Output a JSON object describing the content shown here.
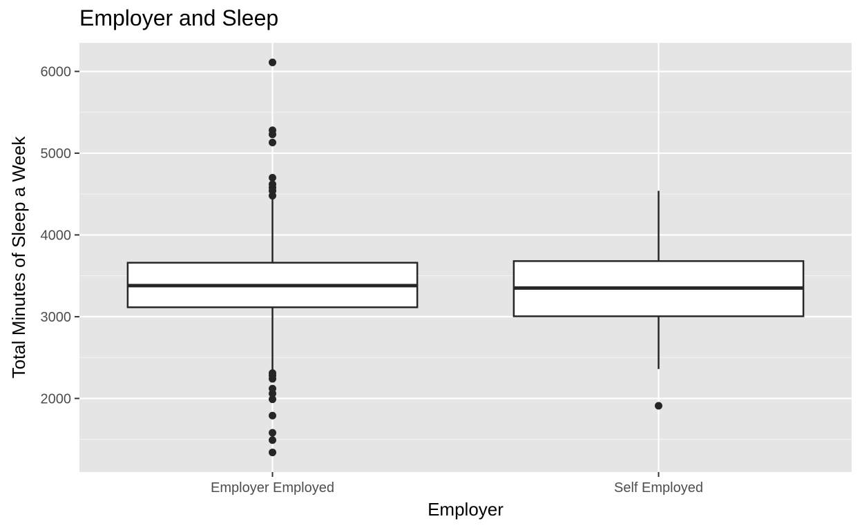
{
  "chart_data": {
    "type": "boxplot",
    "title": "Employer and Sleep",
    "xlabel": "Employer",
    "ylabel": "Total Minutes of Sleep a Week",
    "ylim": [
      1100,
      6350
    ],
    "yticks": [
      2000,
      3000,
      4000,
      5000,
      6000
    ],
    "grid": true,
    "legend": "none",
    "categories": [
      "Employer Employed",
      "Self Employed"
    ],
    "boxes": [
      {
        "category": "Employer Employed",
        "whisker_low": 2330,
        "q1": 3115,
        "median": 3380,
        "q3": 3660,
        "whisker_high": 4440,
        "outliers": [
          6110,
          5280,
          5230,
          5130,
          4700,
          4620,
          4580,
          4540,
          4480,
          2310,
          2280,
          2240,
          2120,
          2060,
          1990,
          1790,
          1580,
          1490,
          1340
        ]
      },
      {
        "category": "Self Employed",
        "whisker_low": 2360,
        "q1": 3005,
        "median": 3350,
        "q3": 3680,
        "whisker_high": 4540,
        "outliers": [
          1910
        ]
      }
    ]
  },
  "colors": {
    "panel_bg": "#e5e5e5",
    "grid_major": "#ffffff",
    "grid_minor": "#f2f2f2",
    "box_fill": "#ffffff",
    "box_stroke": "#262626",
    "point": "#262626",
    "tick_text": "#4d4d4d",
    "title_text": "#000000"
  }
}
